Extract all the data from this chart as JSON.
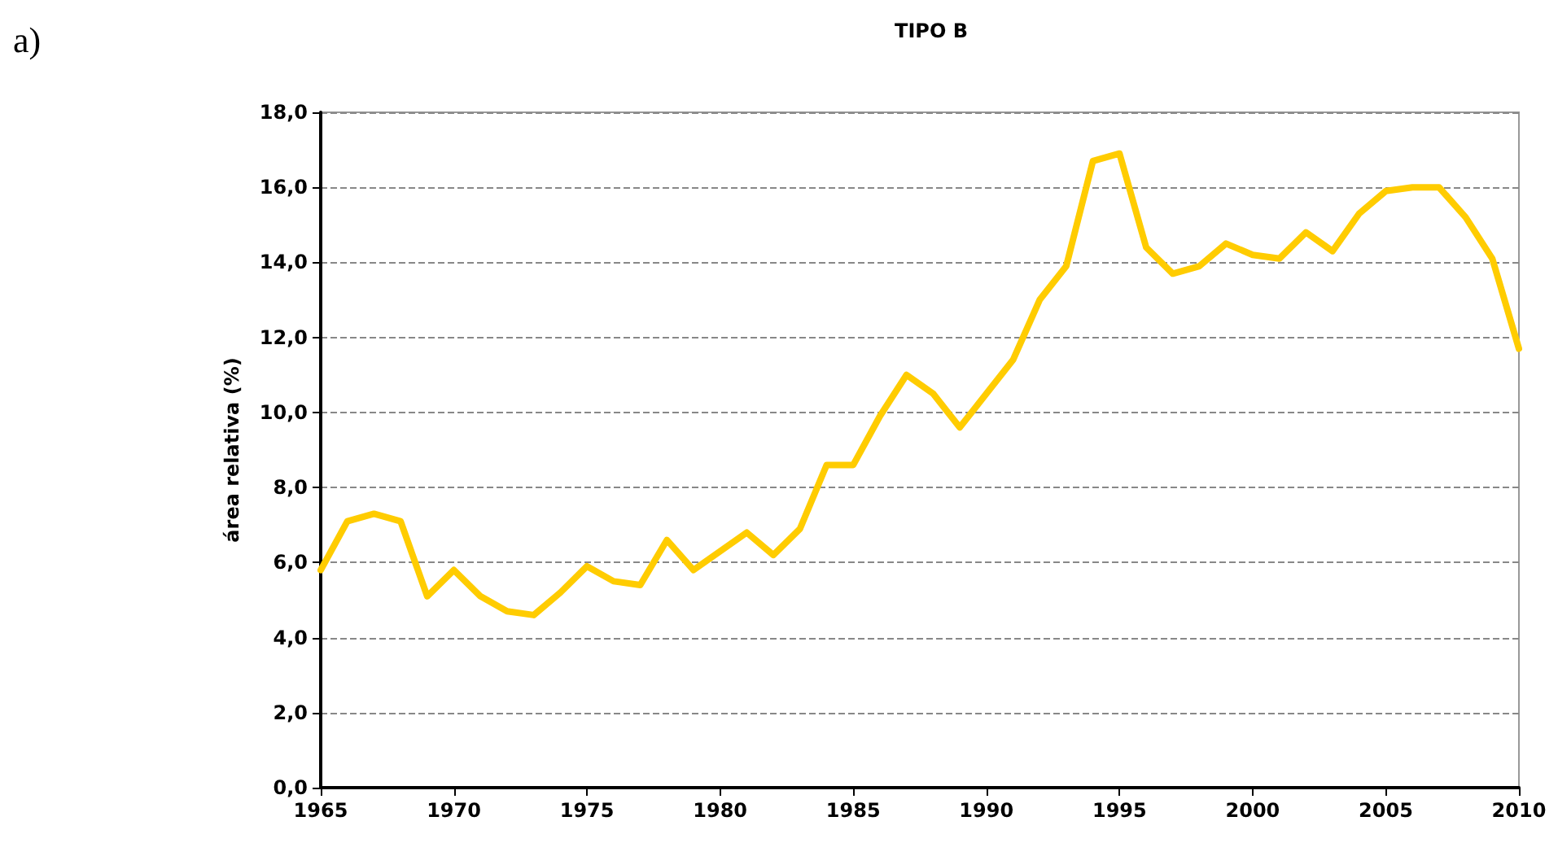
{
  "chart_data": {
    "type": "line",
    "title": "TIPO B",
    "ylabel": "área relativa (%)",
    "annotations": [
      "a)"
    ],
    "x": [
      1965,
      1966,
      1967,
      1968,
      1969,
      1970,
      1971,
      1972,
      1973,
      1974,
      1975,
      1976,
      1977,
      1978,
      1979,
      1980,
      1981,
      1982,
      1983,
      1984,
      1985,
      1986,
      1987,
      1988,
      1989,
      1990,
      1991,
      1992,
      1993,
      1994,
      1995,
      1996,
      1997,
      1998,
      1999,
      2000,
      2001,
      2002,
      2003,
      2004,
      2005,
      2006,
      2007,
      2008,
      2009,
      2010
    ],
    "series": [
      {
        "color": "#ffcc00",
        "values": [
          5.8,
          7.1,
          7.3,
          7.1,
          5.1,
          5.8,
          5.1,
          4.7,
          4.6,
          5.2,
          5.9,
          5.5,
          5.4,
          6.6,
          5.8,
          6.3,
          6.8,
          6.2,
          6.9,
          8.6,
          8.6,
          9.9,
          11.0,
          10.5,
          9.6,
          10.5,
          11.4,
          13.0,
          13.9,
          16.7,
          16.9,
          14.4,
          13.7,
          13.9,
          14.5,
          14.2,
          14.1,
          14.8,
          14.3,
          15.3,
          15.9,
          16.0,
          16.0,
          15.2,
          14.1,
          11.7
        ]
      }
    ],
    "xlim": [
      1965,
      2010
    ],
    "xticks": [
      1965,
      1970,
      1975,
      1980,
      1985,
      1990,
      1995,
      2000,
      2005,
      2010
    ],
    "ylim": [
      0,
      18
    ],
    "yticks": [
      {
        "value": 0,
        "label": "0,0"
      },
      {
        "value": 2,
        "label": "2,0"
      },
      {
        "value": 4,
        "label": "4,0"
      },
      {
        "value": 6,
        "label": "6,0"
      },
      {
        "value": 8,
        "label": "8,0"
      },
      {
        "value": 10,
        "label": "10,0"
      },
      {
        "value": 12,
        "label": "12,0"
      },
      {
        "value": 14,
        "label": "14,0"
      },
      {
        "value": 16,
        "label": "16,0"
      },
      {
        "value": 18,
        "label": "18,0"
      }
    ],
    "grid": "y",
    "marker": "none",
    "line_style": "solid"
  }
}
